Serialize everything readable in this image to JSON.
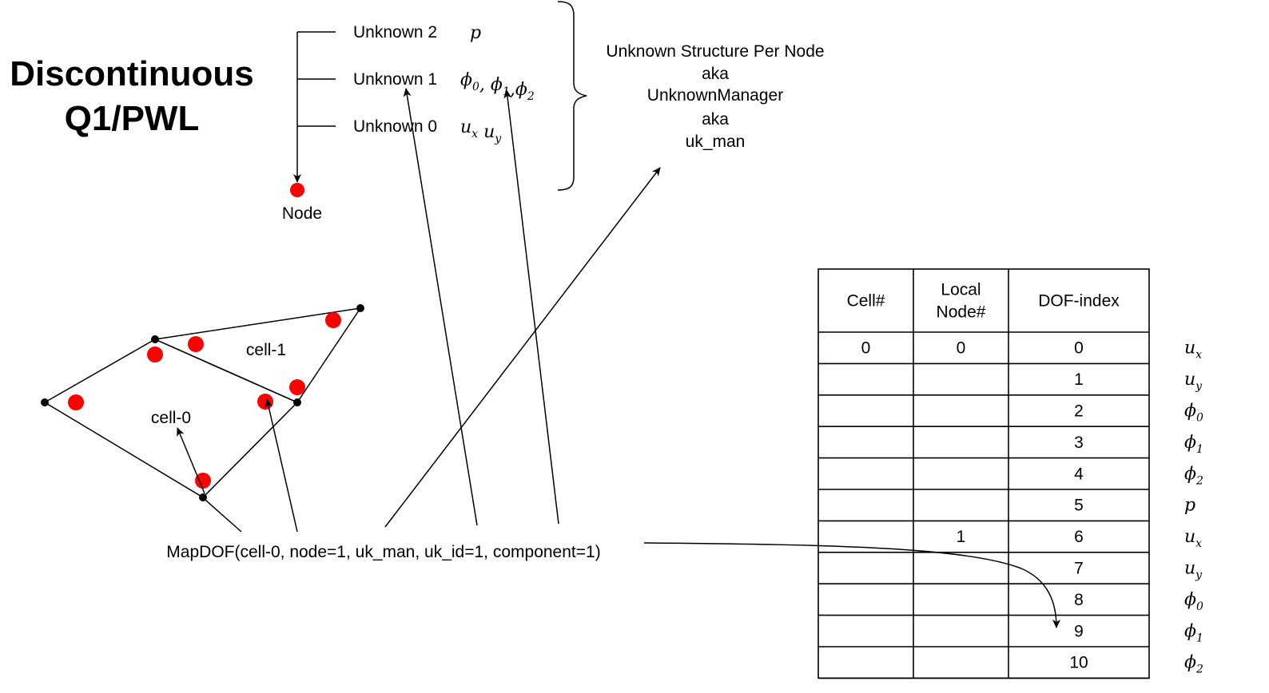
{
  "title": {
    "line1": "Discontinuous",
    "line2": "Q1/PWL"
  },
  "unknowns": [
    {
      "label": "Unknown 2",
      "symbols": [
        {
          "base": "p",
          "sub": ""
        }
      ],
      "sep": []
    },
    {
      "label": "Unknown 1",
      "symbols": [
        {
          "base": "ϕ",
          "sub": "0"
        },
        {
          "base": "ϕ",
          "sub": "1"
        },
        {
          "base": "ϕ",
          "sub": "2"
        }
      ],
      "sep": [
        ", ",
        ","
      ]
    },
    {
      "label": "Unknown 0",
      "symbols": [
        {
          "base": "u",
          "sub": "x"
        },
        {
          "base": "u",
          "sub": "y"
        }
      ],
      "sep": [
        " "
      ]
    }
  ],
  "node_label": "Node",
  "structure_lines": [
    "Unknown Structure Per Node",
    "aka",
    "UnknownManager",
    "aka",
    "uk_man"
  ],
  "cells": [
    "cell-1",
    "cell-0"
  ],
  "call": "MapDOF(cell-0, node=1, uk_man, uk_id=1, component=1)",
  "table": {
    "headers": [
      "Cell#",
      "Local\nNode#",
      "DOF-index"
    ],
    "rows": [
      {
        "cell": "0",
        "node": "0",
        "dof": "0",
        "sym": {
          "base": "u",
          "sub": "x"
        }
      },
      {
        "cell": "",
        "node": "",
        "dof": "1",
        "sym": {
          "base": "u",
          "sub": "y"
        }
      },
      {
        "cell": "",
        "node": "",
        "dof": "2",
        "sym": {
          "base": "ϕ",
          "sub": "0"
        }
      },
      {
        "cell": "",
        "node": "",
        "dof": "3",
        "sym": {
          "base": "ϕ",
          "sub": "1"
        }
      },
      {
        "cell": "",
        "node": "",
        "dof": "4",
        "sym": {
          "base": "ϕ",
          "sub": "2"
        }
      },
      {
        "cell": "",
        "node": "",
        "dof": "5",
        "sym": {
          "base": "p",
          "sub": ""
        }
      },
      {
        "cell": "",
        "node": "1",
        "dof": "6",
        "sym": {
          "base": "u",
          "sub": "x"
        }
      },
      {
        "cell": "",
        "node": "",
        "dof": "7",
        "sym": {
          "base": "u",
          "sub": "y"
        }
      },
      {
        "cell": "",
        "node": "",
        "dof": "8",
        "sym": {
          "base": "ϕ",
          "sub": "0"
        }
      },
      {
        "cell": "",
        "node": "",
        "dof": "9",
        "sym": {
          "base": "ϕ",
          "sub": "1"
        }
      },
      {
        "cell": "",
        "node": "",
        "dof": "10",
        "sym": {
          "base": "ϕ",
          "sub": "2"
        }
      }
    ]
  },
  "colors": {
    "dot": "#ff0000",
    "line": "#000000"
  }
}
